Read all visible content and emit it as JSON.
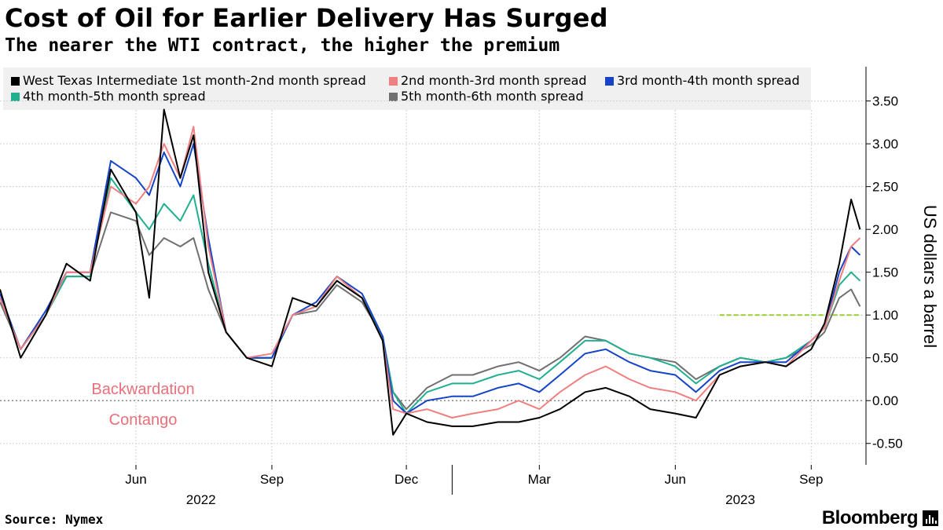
{
  "header": {
    "title": "Cost of Oil for Earlier Delivery Has Surged",
    "subtitle": "The nearer the WTI contract, the higher the premium"
  },
  "legend": [
    {
      "label": "West Texas Intermediate 1st month-2nd month spread",
      "color": "#000000"
    },
    {
      "label": "2nd month-3rd month spread",
      "color": "#f08080"
    },
    {
      "label": "3rd month-4th month spread",
      "color": "#1644c8"
    },
    {
      "label": "4th month-5th month spread",
      "color": "#20b090"
    },
    {
      "label": "5th month-6th month spread",
      "color": "#707070"
    }
  ],
  "footer": {
    "source": "Source: Nymex",
    "brand": "Bloomberg"
  },
  "icons": {
    "brand_icon": "bloomberg-terminal-icon"
  },
  "chart_data": {
    "type": "line",
    "ylabel": "US dollars a barrel",
    "ylim": [
      -0.75,
      3.9
    ],
    "yticks": [
      -0.5,
      0.0,
      0.5,
      1.0,
      1.5,
      2.0,
      2.5,
      3.0,
      3.5
    ],
    "ytick_labels": [
      "-0.50",
      "0.00",
      "0.50",
      "1.00",
      "1.50",
      "2.00",
      "2.50",
      "3.00",
      "3.50"
    ],
    "xlim": [
      "2022-03-01",
      "2023-10-07"
    ],
    "xticks": [
      {
        "date": "2022-06-01",
        "label": "Jun"
      },
      {
        "date": "2022-09-01",
        "label": "Sep"
      },
      {
        "date": "2022-12-01",
        "label": "Dec"
      },
      {
        "date": "2023-03-01",
        "label": "Mar"
      },
      {
        "date": "2023-06-01",
        "label": "Jun"
      },
      {
        "date": "2023-09-01",
        "label": "Sep"
      }
    ],
    "year_labels": [
      {
        "date": "2022-07-15",
        "label": "2022"
      },
      {
        "date": "2023-07-15",
        "label": "2023"
      }
    ],
    "year_boundaries": [
      "2023-01-01"
    ],
    "grid": true,
    "zero_line": true,
    "annotations": [
      {
        "text": "Backwardation",
        "color": "#e8707a"
      },
      {
        "text": "Contango",
        "color": "#e8707a"
      }
    ],
    "reference_line": {
      "value": 1.0,
      "from": "2023-07-01",
      "to": "2023-10-05",
      "color": "#9acd32"
    },
    "x": [
      "2022-03-01",
      "2022-03-15",
      "2022-04-01",
      "2022-04-15",
      "2022-05-01",
      "2022-05-15",
      "2022-06-01",
      "2022-06-10",
      "2022-06-20",
      "2022-07-01",
      "2022-07-10",
      "2022-07-20",
      "2022-08-01",
      "2022-08-15",
      "2022-09-01",
      "2022-09-15",
      "2022-10-01",
      "2022-10-15",
      "2022-11-01",
      "2022-11-15",
      "2022-11-22",
      "2022-12-01",
      "2022-12-15",
      "2023-01-01",
      "2023-01-15",
      "2023-02-01",
      "2023-02-15",
      "2023-03-01",
      "2023-03-15",
      "2023-04-01",
      "2023-04-15",
      "2023-05-01",
      "2023-05-15",
      "2023-06-01",
      "2023-06-15",
      "2023-07-01",
      "2023-07-15",
      "2023-08-01",
      "2023-08-15",
      "2023-09-01",
      "2023-09-10",
      "2023-09-20",
      "2023-09-28",
      "2023-10-04"
    ],
    "series": [
      {
        "name": "West Texas Intermediate 1st month-2nd month spread",
        "color": "#000000",
        "values": [
          1.3,
          0.5,
          1.0,
          1.6,
          1.4,
          2.7,
          2.2,
          1.2,
          3.4,
          2.6,
          3.1,
          1.5,
          0.8,
          0.5,
          0.4,
          1.2,
          1.1,
          1.4,
          1.2,
          0.7,
          -0.4,
          -0.15,
          -0.25,
          -0.3,
          -0.3,
          -0.25,
          -0.25,
          -0.2,
          -0.1,
          0.1,
          0.15,
          0.05,
          -0.1,
          -0.15,
          -0.2,
          0.3,
          0.4,
          0.45,
          0.4,
          0.6,
          0.9,
          1.6,
          2.35,
          2.0
        ]
      },
      {
        "name": "2nd month-3rd month spread",
        "color": "#f08080",
        "values": [
          1.2,
          0.6,
          1.0,
          1.5,
          1.5,
          2.5,
          2.3,
          2.5,
          3.0,
          2.6,
          3.2,
          1.8,
          0.8,
          0.5,
          0.55,
          1.0,
          1.1,
          1.45,
          1.2,
          0.7,
          -0.1,
          -0.15,
          -0.1,
          -0.2,
          -0.15,
          -0.1,
          0.0,
          -0.1,
          0.1,
          0.3,
          0.4,
          0.25,
          0.15,
          0.1,
          0.0,
          0.3,
          0.4,
          0.45,
          0.4,
          0.7,
          0.85,
          1.4,
          1.8,
          1.9
        ]
      },
      {
        "name": "3rd month-4th month spread",
        "color": "#1644c8",
        "values": [
          1.25,
          0.6,
          1.05,
          1.5,
          1.5,
          2.8,
          2.6,
          2.4,
          2.9,
          2.5,
          3.0,
          1.9,
          0.8,
          0.5,
          0.5,
          1.0,
          1.15,
          1.45,
          1.25,
          0.75,
          0.0,
          -0.15,
          0.0,
          0.05,
          0.05,
          0.15,
          0.2,
          0.1,
          0.3,
          0.55,
          0.6,
          0.45,
          0.35,
          0.3,
          0.1,
          0.35,
          0.45,
          0.45,
          0.45,
          0.7,
          0.85,
          1.5,
          1.8,
          1.7
        ]
      },
      {
        "name": "4th month-5th month spread",
        "color": "#20b090",
        "values": [
          1.2,
          0.6,
          1.0,
          1.45,
          1.45,
          2.6,
          2.2,
          2.0,
          2.3,
          2.1,
          2.4,
          1.6,
          0.8,
          0.5,
          0.5,
          1.0,
          1.1,
          1.4,
          1.2,
          0.75,
          0.1,
          -0.15,
          0.1,
          0.2,
          0.2,
          0.3,
          0.35,
          0.25,
          0.45,
          0.7,
          0.7,
          0.55,
          0.5,
          0.4,
          0.2,
          0.4,
          0.5,
          0.45,
          0.5,
          0.7,
          0.85,
          1.35,
          1.5,
          1.4
        ]
      },
      {
        "name": "5th month-6th month spread",
        "color": "#707070",
        "values": [
          1.15,
          0.6,
          1.0,
          1.45,
          1.45,
          2.2,
          2.1,
          1.7,
          1.9,
          1.8,
          1.9,
          1.3,
          0.8,
          0.5,
          0.5,
          1.0,
          1.05,
          1.35,
          1.15,
          0.75,
          0.1,
          -0.1,
          0.15,
          0.3,
          0.3,
          0.4,
          0.45,
          0.35,
          0.5,
          0.75,
          0.7,
          0.55,
          0.5,
          0.45,
          0.25,
          0.4,
          0.5,
          0.45,
          0.5,
          0.65,
          0.8,
          1.2,
          1.3,
          1.1
        ]
      }
    ]
  }
}
